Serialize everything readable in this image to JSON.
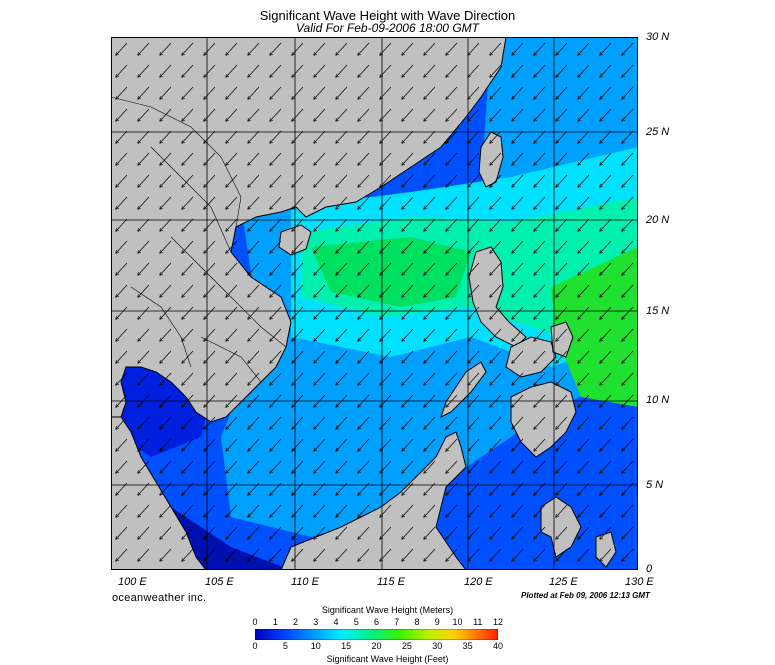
{
  "title": "Significant Wave Height with Wave Direction",
  "subtitle": "Valid For Feb-09-2006 18:00 GMT",
  "lat_labels": [
    "30 N",
    "25 N",
    "20 N",
    "15 N",
    "10 N",
    "5 N",
    "0"
  ],
  "lon_labels": [
    "100 E",
    "105 E",
    "110 E",
    "115 E",
    "120 E",
    "125 E",
    "130 E"
  ],
  "credit": "oceanweather inc.",
  "plotted": "Plotted at Feb 09, 2006 12:13 GMT",
  "legend": {
    "title_meters": "Significant Wave Height (Meters)",
    "title_feet": "Significant Wave Height (Feet)",
    "meter_ticks": [
      "0",
      "1",
      "2",
      "3",
      "4",
      "5",
      "6",
      "7",
      "8",
      "9",
      "10",
      "11",
      "12"
    ],
    "feet_ticks": [
      "0",
      "5",
      "10",
      "15",
      "20",
      "25",
      "30",
      "35",
      "40"
    ]
  },
  "colors": {
    "land": "#c0c0c0",
    "deep": "#0010d0",
    "low": "#0050ff",
    "mid": "#00a0ff",
    "cyan": "#00e0ff",
    "aqua": "#00f0c0",
    "green": "#00e060",
    "bright_green": "#20e020"
  }
}
